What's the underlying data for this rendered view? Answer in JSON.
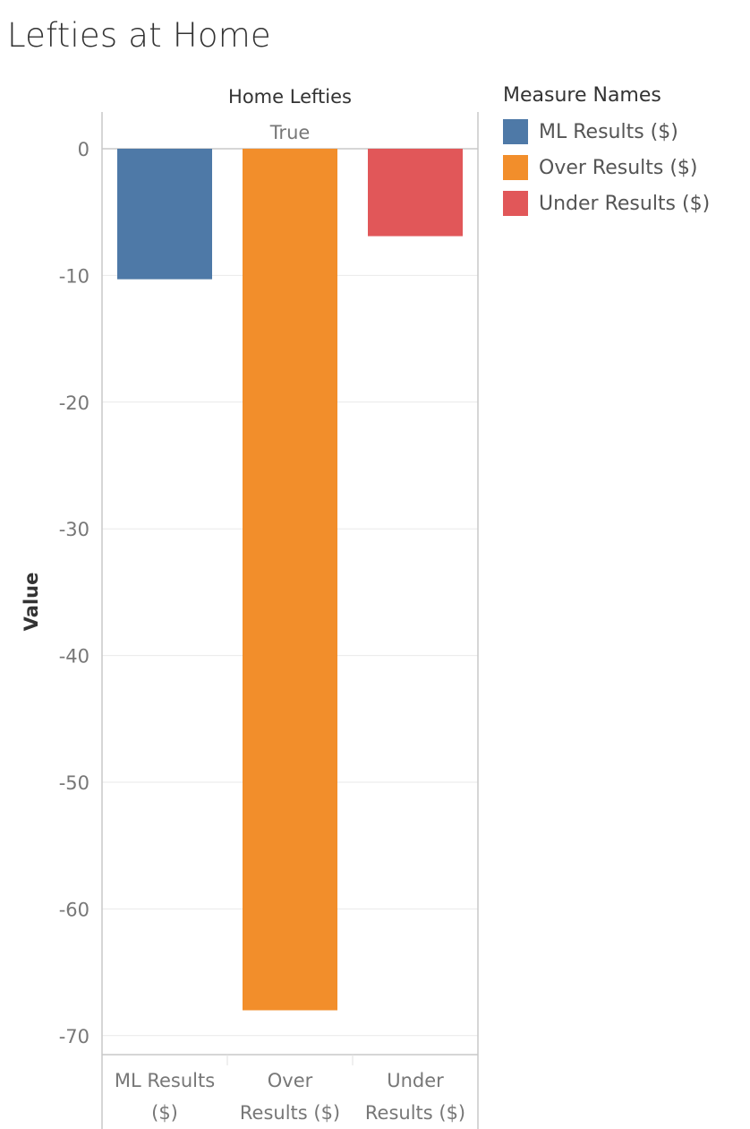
{
  "title": "Lefties at Home",
  "chart_data": {
    "type": "bar",
    "column_header_title": "Home Lefties",
    "column_header_value": "True",
    "categories": [
      {
        "lines": [
          "ML Results",
          "($)"
        ]
      },
      {
        "lines": [
          "Over",
          "Results ($)"
        ]
      },
      {
        "lines": [
          "Under",
          "Results ($)"
        ]
      }
    ],
    "values": [
      -10.3,
      -68.0,
      -6.9
    ],
    "colors": [
      "#4e79a7",
      "#f28e2b",
      "#e15759"
    ],
    "ylabel": "Value",
    "ylim": [
      -71.5,
      0
    ],
    "yticks": [
      0,
      -10,
      -20,
      -30,
      -40,
      -50,
      -60,
      -70
    ],
    "grid": true,
    "legend_position": "right",
    "legend": {
      "title": "Measure Names",
      "items": [
        {
          "label": "ML Results ($)",
          "color": "#4e79a7"
        },
        {
          "label": "Over Results ($)",
          "color": "#f28e2b"
        },
        {
          "label": "Under Results ($)",
          "color": "#e15759"
        }
      ]
    }
  }
}
